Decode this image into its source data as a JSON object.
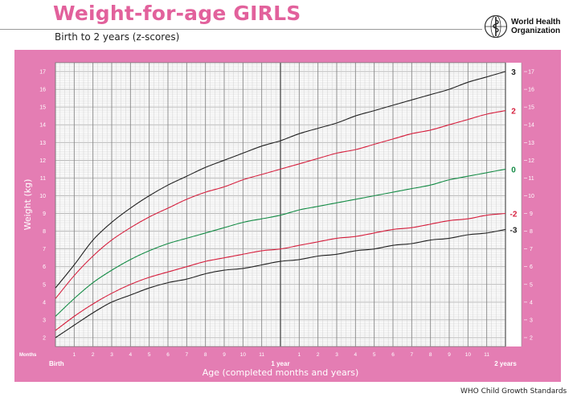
{
  "header": {
    "title": "Weight-for-age GIRLS",
    "subtitle": "Birth to 2 years (z-scores)"
  },
  "logo": {
    "line1": "World Health",
    "line2": "Organization"
  },
  "footer": {
    "source": "WHO Child Growth Standards"
  },
  "colors": {
    "panel": "#e47db3",
    "title": "#e2619c",
    "z3": "#222222",
    "z2": "#d6203e",
    "z0": "#158c46"
  },
  "chart_data": {
    "type": "line",
    "title": "Weight-for-age GIRLS",
    "subtitle": "Birth to 2 years (z-scores)",
    "xlabel": "Age (completed months and years)",
    "ylabel": "Weight (kg)",
    "xlim": [
      0,
      24
    ],
    "ylim": [
      1.5,
      17.5
    ],
    "grid": true,
    "months_label": "Months",
    "month_ticks": [
      "Birth",
      "1",
      "2",
      "3",
      "4",
      "5",
      "6",
      "7",
      "8",
      "9",
      "10",
      "11",
      "1 year",
      "1",
      "2",
      "3",
      "4",
      "5",
      "6",
      "7",
      "8",
      "9",
      "10",
      "11",
      "2 years"
    ],
    "y_ticks": [
      2,
      3,
      4,
      5,
      6,
      7,
      8,
      9,
      10,
      11,
      12,
      13,
      14,
      15,
      16,
      17
    ],
    "x": [
      0,
      1,
      2,
      3,
      4,
      5,
      6,
      7,
      8,
      9,
      10,
      11,
      12,
      13,
      14,
      15,
      16,
      17,
      18,
      19,
      20,
      21,
      22,
      23,
      24
    ],
    "series": [
      {
        "name": "3",
        "color": "#222222",
        "values": [
          4.8,
          6.1,
          7.5,
          8.5,
          9.3,
          10.0,
          10.6,
          11.1,
          11.6,
          12.0,
          12.4,
          12.8,
          13.1,
          13.5,
          13.8,
          14.1,
          14.5,
          14.8,
          15.1,
          15.4,
          15.7,
          16.0,
          16.4,
          16.7,
          17.0
        ]
      },
      {
        "name": "2",
        "color": "#d6203e",
        "values": [
          4.2,
          5.5,
          6.6,
          7.5,
          8.2,
          8.8,
          9.3,
          9.8,
          10.2,
          10.5,
          10.9,
          11.2,
          11.5,
          11.8,
          12.1,
          12.4,
          12.6,
          12.9,
          13.2,
          13.5,
          13.7,
          14.0,
          14.3,
          14.6,
          14.8
        ]
      },
      {
        "name": "0",
        "color": "#158c46",
        "values": [
          3.2,
          4.2,
          5.1,
          5.8,
          6.4,
          6.9,
          7.3,
          7.6,
          7.9,
          8.2,
          8.5,
          8.7,
          8.9,
          9.2,
          9.4,
          9.6,
          9.8,
          10.0,
          10.2,
          10.4,
          10.6,
          10.9,
          11.1,
          11.3,
          11.5
        ]
      },
      {
        "name": "-2",
        "color": "#d6203e",
        "values": [
          2.4,
          3.2,
          3.9,
          4.5,
          5.0,
          5.4,
          5.7,
          6.0,
          6.3,
          6.5,
          6.7,
          6.9,
          7.0,
          7.2,
          7.4,
          7.6,
          7.7,
          7.9,
          8.1,
          8.2,
          8.4,
          8.6,
          8.7,
          8.9,
          9.0
        ]
      },
      {
        "name": "-3",
        "color": "#222222",
        "values": [
          2.0,
          2.7,
          3.4,
          4.0,
          4.4,
          4.8,
          5.1,
          5.3,
          5.6,
          5.8,
          5.9,
          6.1,
          6.3,
          6.4,
          6.6,
          6.7,
          6.9,
          7.0,
          7.2,
          7.3,
          7.5,
          7.6,
          7.8,
          7.9,
          8.1
        ]
      }
    ]
  }
}
